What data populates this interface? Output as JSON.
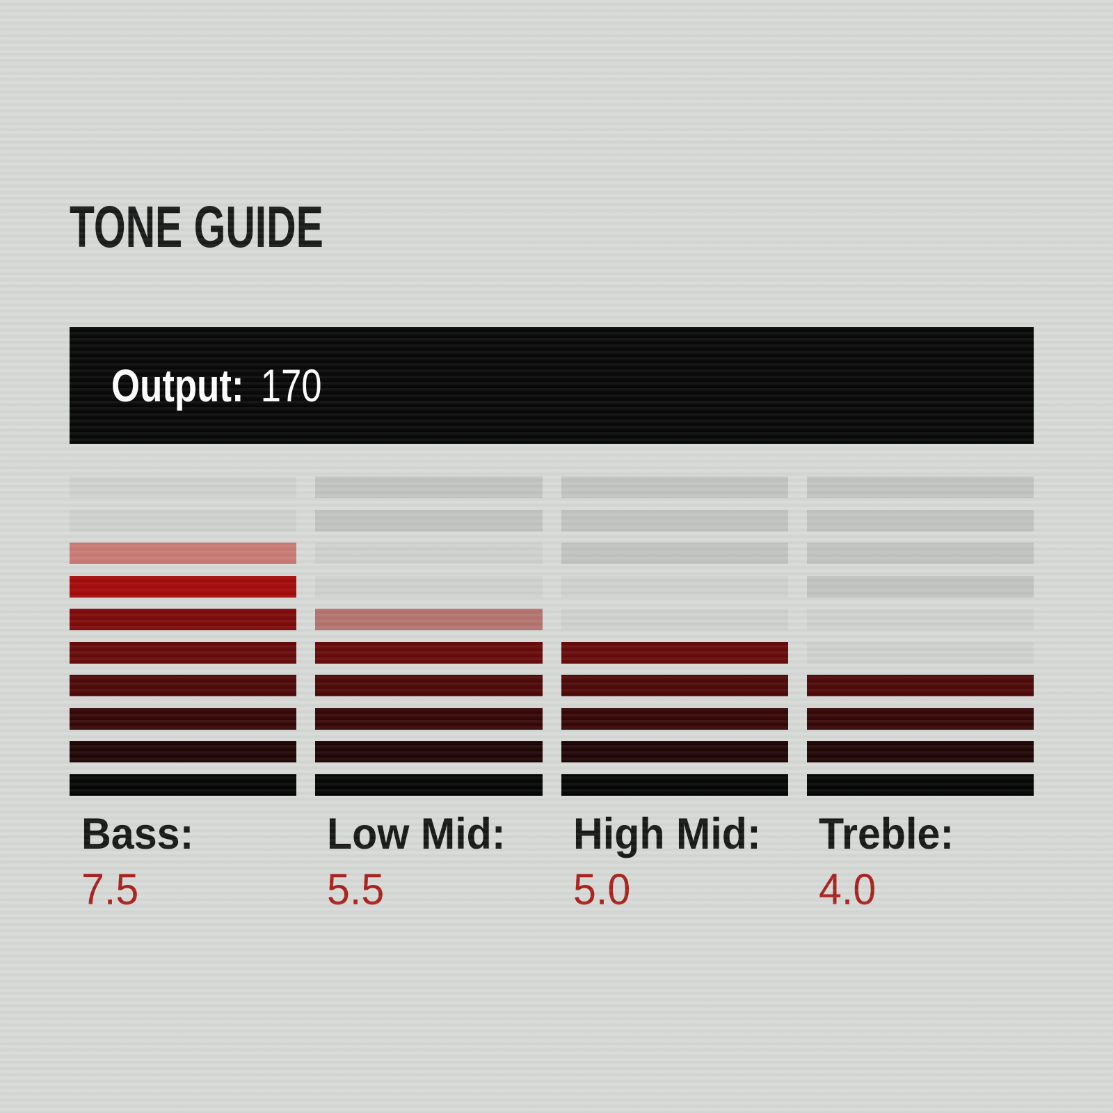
{
  "title": "TONE GUIDE",
  "output_bar": {
    "label": "Output:",
    "value": "170"
  },
  "meter": {
    "rows_per_column": 10,
    "bands": [
      {
        "id": "bass",
        "label": "Bass:",
        "value": "7.5",
        "cells": [
          "#ced1ce",
          "#ced1ce",
          "#c77973",
          "#a30707",
          "#7d0606",
          "#640707",
          "#4b0505",
          "#330303",
          "#1d0202",
          "#020202"
        ]
      },
      {
        "id": "low-mid",
        "label": "Low Mid:",
        "value": "5.5",
        "cells": [
          "#c1c3c0",
          "#c1c3c0",
          "#ced1ce",
          "#ced1ce",
          "#b3726d",
          "#640707",
          "#4b0505",
          "#330303",
          "#1d0202",
          "#020202"
        ]
      },
      {
        "id": "high-mid",
        "label": "High Mid:",
        "value": "5.0",
        "cells": [
          "#c1c3c0",
          "#c1c3c0",
          "#c1c3c0",
          "#ced1ce",
          "#ced1ce",
          "#640707",
          "#4b0505",
          "#330303",
          "#1d0202",
          "#020202"
        ]
      },
      {
        "id": "treble",
        "label": "Treble:",
        "value": "4.0",
        "cells": [
          "#c1c3c0",
          "#c1c3c0",
          "#c1c3c0",
          "#c1c3c0",
          "#ced1ce",
          "#ced1ce",
          "#4b0505",
          "#330303",
          "#1d0202",
          "#020202"
        ]
      }
    ]
  },
  "colors": {
    "background": "#d6d9d6",
    "bar_background": "#040404",
    "bar_text": "#ffffff",
    "heading_text": "#161616",
    "value_text": "#a81e1a",
    "inactive_segment": "#c1c3c0",
    "inactive_segment_near_active": "#ced1ce",
    "half_step_segment_bass": "#c77973",
    "half_step_segment_low_mid": "#b3726d"
  },
  "chart_data": {
    "type": "bar",
    "title": "TONE GUIDE",
    "categories": [
      "Bass",
      "Low Mid",
      "High Mid",
      "Treble"
    ],
    "values": [
      7.5,
      5.5,
      5.0,
      4.0
    ],
    "output": 170,
    "scale": {
      "min": 0,
      "max": 10,
      "segments_per_column": 10
    },
    "half_step_rendering": "topmost active segment drawn faded (pink) for .5 values",
    "segment_gradient_bottom_to_top": [
      "#020202",
      "#1d0202",
      "#330303",
      "#4b0505",
      "#640707",
      "#7d0606",
      "#a30707",
      "#b80d0d"
    ],
    "orientation": "vertical-segmented-meter",
    "grid": false,
    "legend_position": "none"
  }
}
